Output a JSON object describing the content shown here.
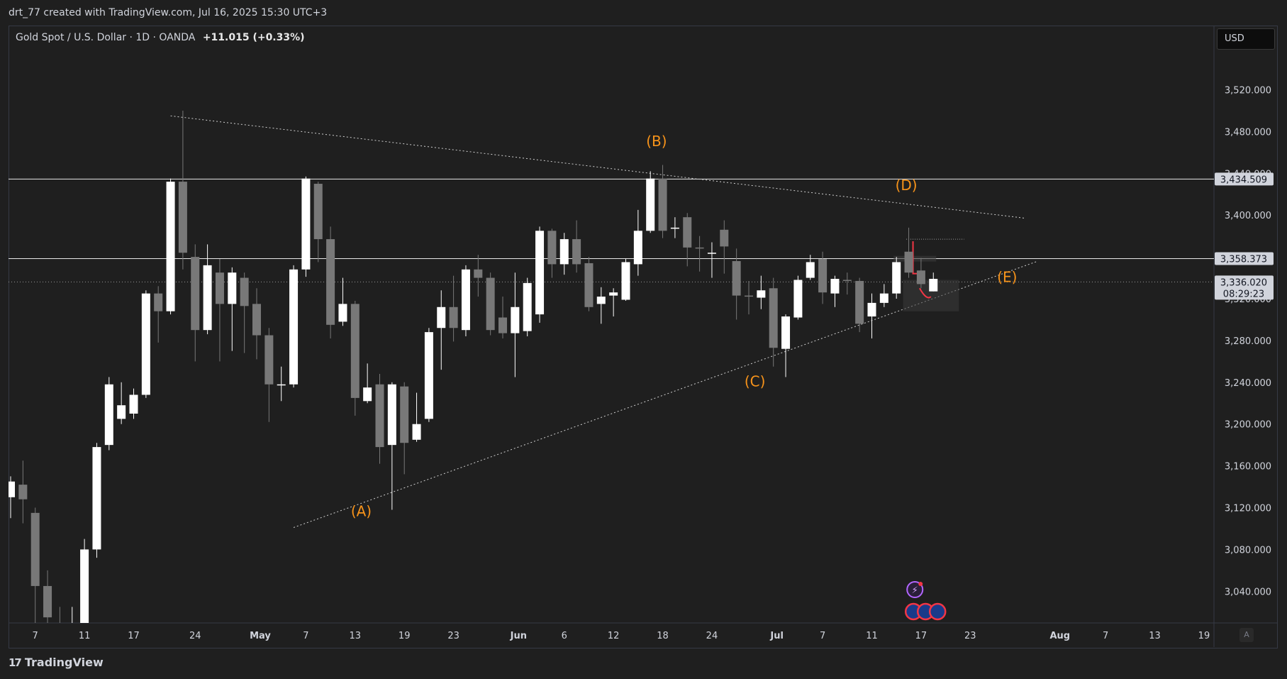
{
  "caption": "drt_77 created with TradingView.com, Jul 16, 2025 15:30 UTC+3",
  "symbol": {
    "name": "Gold Spot / U.S. Dollar · 1D · OANDA",
    "change": "+11.015 (+0.33%)"
  },
  "currency": "USD",
  "footer": {
    "brand": "TradingView",
    "axis_button": "A"
  },
  "colors": {
    "background": "#1f1f1f",
    "up_candle": "#ffffff",
    "down_candle": "#787878",
    "wave_label": "#f7931a",
    "price_tag": "#d1d4dc"
  },
  "chart_data": {
    "type": "candlestick",
    "ylim": [
      3010,
      3560
    ],
    "y_ticks": [
      3040,
      3080,
      3120,
      3160,
      3200,
      3240,
      3280,
      3320,
      3360,
      3400,
      3440,
      3480,
      3520
    ],
    "y_tick_labels": [
      "3,040.000",
      "3,080.000",
      "3,120.000",
      "3,160.000",
      "3,200.000",
      "3,240.000",
      "3,280.000",
      "3,320.000",
      "3,360.000",
      "3,400.000",
      "3,440.000",
      "3,480.000",
      "3,520.000"
    ],
    "x_ticks": [
      {
        "label": "7",
        "i": 2
      },
      {
        "label": "11",
        "i": 6
      },
      {
        "label": "17",
        "i": 10
      },
      {
        "label": "24",
        "i": 15
      },
      {
        "label": "May",
        "i": 20
      },
      {
        "label": "7",
        "i": 24
      },
      {
        "label": "13",
        "i": 28
      },
      {
        "label": "19",
        "i": 32
      },
      {
        "label": "23",
        "i": 36
      },
      {
        "label": "Jun",
        "i": 41
      },
      {
        "label": "6",
        "i": 45
      },
      {
        "label": "12",
        "i": 49
      },
      {
        "label": "18",
        "i": 53
      },
      {
        "label": "24",
        "i": 57
      },
      {
        "label": "Jul",
        "i": 62
      },
      {
        "label": "7",
        "i": 66
      },
      {
        "label": "11",
        "i": 70
      },
      {
        "label": "17",
        "i": 74
      },
      {
        "label": "23",
        "i": 78
      },
      {
        "label": "Aug",
        "i": 85
      },
      {
        "label": "7",
        "i": 89
      },
      {
        "label": "13",
        "i": 93
      },
      {
        "label": "19",
        "i": 97
      }
    ],
    "candles": [
      [
        3130,
        3145,
        3110,
        3150
      ],
      [
        3142,
        3128,
        3105,
        3165
      ],
      [
        3115,
        3045,
        2990,
        3120
      ],
      [
        3045,
        3015,
        2950,
        3060
      ],
      [
        3000,
        2975,
        2960,
        3025
      ],
      [
        2980,
        2998,
        2965,
        3025
      ],
      [
        2998,
        3080,
        2995,
        3090
      ],
      [
        3080,
        3178,
        3072,
        3182
      ],
      [
        3180,
        3238,
        3175,
        3245
      ],
      [
        3205,
        3218,
        3200,
        3240
      ],
      [
        3210,
        3228,
        3205,
        3234
      ],
      [
        3228,
        3325,
        3225,
        3328
      ],
      [
        3325,
        3308,
        3278,
        3332
      ],
      [
        3308,
        3432,
        3305,
        3435
      ],
      [
        3432,
        3364,
        3348,
        3500
      ],
      [
        3360,
        3290,
        3260,
        3372
      ],
      [
        3290,
        3352,
        3286,
        3372
      ],
      [
        3345,
        3315,
        3260,
        3358
      ],
      [
        3315,
        3345,
        3270,
        3350
      ],
      [
        3340,
        3313,
        3268,
        3345
      ],
      [
        3315,
        3285,
        3262,
        3330
      ],
      [
        3285,
        3238,
        3202,
        3292
      ],
      [
        3238,
        3238,
        3222,
        3255
      ],
      [
        3238,
        3348,
        3235,
        3352
      ],
      [
        3348,
        3435,
        3341,
        3437
      ],
      [
        3430,
        3377,
        3355,
        3432
      ],
      [
        3377,
        3295,
        3282,
        3389
      ],
      [
        3298,
        3315,
        3294,
        3340
      ],
      [
        3315,
        3225,
        3208,
        3318
      ],
      [
        3222,
        3235,
        3220,
        3258
      ],
      [
        3238,
        3178,
        3162,
        3248
      ],
      [
        3180,
        3238,
        3118,
        3240
      ],
      [
        3236,
        3182,
        3152,
        3240
      ],
      [
        3185,
        3200,
        3183,
        3230
      ],
      [
        3205,
        3288,
        3202,
        3292
      ],
      [
        3292,
        3312,
        3252,
        3328
      ],
      [
        3312,
        3292,
        3279,
        3342
      ],
      [
        3290,
        3348,
        3284,
        3352
      ],
      [
        3348,
        3340,
        3322,
        3362
      ],
      [
        3340,
        3290,
        3285,
        3345
      ],
      [
        3302,
        3287,
        3282,
        3322
      ],
      [
        3287,
        3312,
        3245,
        3345
      ],
      [
        3289,
        3335,
        3284,
        3340
      ],
      [
        3305,
        3385,
        3297,
        3389
      ],
      [
        3385,
        3353,
        3340,
        3387
      ],
      [
        3353,
        3377,
        3343,
        3383
      ],
      [
        3377,
        3353,
        3345,
        3395
      ],
      [
        3354,
        3312,
        3308,
        3360
      ],
      [
        3315,
        3322,
        3296,
        3331
      ],
      [
        3323,
        3326,
        3303,
        3330
      ],
      [
        3319,
        3355,
        3318,
        3358
      ],
      [
        3353,
        3385,
        3342,
        3405
      ],
      [
        3385,
        3435,
        3383,
        3442
      ],
      [
        3435,
        3385,
        3378,
        3448
      ],
      [
        3387,
        3388,
        3378,
        3398
      ],
      [
        3398,
        3369,
        3351,
        3402
      ],
      [
        3369,
        3368,
        3346,
        3380
      ],
      [
        3364,
        3364,
        3340,
        3374
      ],
      [
        3386,
        3370,
        3344,
        3395
      ],
      [
        3356,
        3323,
        3300,
        3368
      ],
      [
        3323,
        3322,
        3305,
        3337
      ],
      [
        3321,
        3328,
        3310,
        3342
      ],
      [
        3330,
        3273,
        3255,
        3340
      ],
      [
        3272,
        3303,
        3245,
        3305
      ],
      [
        3302,
        3338,
        3300,
        3342
      ],
      [
        3340,
        3355,
        3338,
        3362
      ],
      [
        3358,
        3326,
        3315,
        3365
      ],
      [
        3325,
        3339,
        3312,
        3342
      ],
      [
        3338,
        3337,
        3324,
        3345
      ],
      [
        3337,
        3296,
        3288,
        3340
      ],
      [
        3303,
        3316,
        3282,
        3325
      ],
      [
        3316,
        3325,
        3312,
        3334
      ],
      [
        3325,
        3355,
        3320,
        3360
      ],
      [
        3365,
        3345,
        3340,
        3388
      ],
      [
        3347,
        3334,
        3330,
        3359
      ],
      [
        3327,
        3339,
        3327,
        3345
      ]
    ],
    "price_labels": [
      {
        "value": 3434.509,
        "text": "3,434.509"
      },
      {
        "value": 3358.373,
        "text": "3,358.373"
      },
      {
        "value": 3336.02,
        "text": "3,336.020",
        "sub": "08:29:23"
      }
    ],
    "wave_labels": [
      {
        "text": "(A)",
        "i": 28.5,
        "y": 3112
      },
      {
        "text": "(B)",
        "i": 52.5,
        "y": 3466
      },
      {
        "text": "(C)",
        "i": 60.5,
        "y": 3236
      },
      {
        "text": "(D)",
        "i": 72.8,
        "y": 3424
      },
      {
        "text": "(E)",
        "i": 81,
        "y": 3336
      }
    ],
    "trendlines": [
      {
        "from": [
          13,
          3495
        ],
        "to": [
          82.5,
          3397
        ],
        "style": "dotted"
      },
      {
        "from": [
          23,
          3101
        ],
        "to": [
          83.5,
          3356
        ],
        "style": "dotted"
      }
    ],
    "dotted_levels": [
      3336.02
    ],
    "solid_levels": [
      3434.509,
      3358.373
    ]
  }
}
